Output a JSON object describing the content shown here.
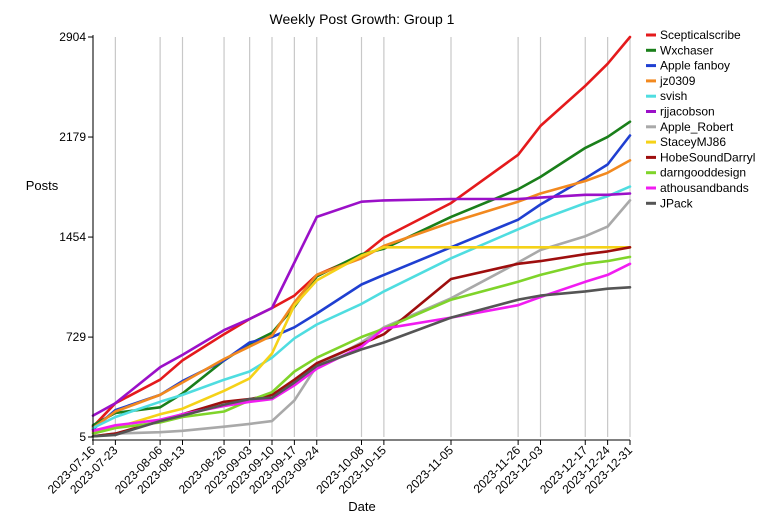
{
  "chart_data": {
    "type": "line",
    "title": "Weekly Post Growth: Group 1",
    "xlabel": "Date",
    "ylabel": "Posts",
    "grid": "vertical",
    "legend_placement": "right",
    "y_ticks": [
      5,
      729,
      1454,
      2179,
      2904
    ],
    "ylim": [
      5,
      2904
    ],
    "x": [
      "2023-07-16",
      "2023-07-23",
      "2023-08-06",
      "2023-08-13",
      "2023-08-26",
      "2023-09-03",
      "2023-09-10",
      "2023-09-17",
      "2023-09-24",
      "2023-10-08",
      "2023-10-15",
      "2023-11-05",
      "2023-11-26",
      "2023-12-03",
      "2023-12-17",
      "2023-12-24",
      "2023-12-31"
    ],
    "series": [
      {
        "name": "Scepticalscribe",
        "color": "#e41a1c",
        "values": [
          80,
          250,
          420,
          560,
          750,
          860,
          940,
          1030,
          1180,
          1320,
          1450,
          1700,
          2050,
          2260,
          2550,
          2710,
          2904
        ]
      },
      {
        "name": "Wxchaser",
        "color": "#1a7f1a",
        "values": [
          90,
          180,
          220,
          320,
          560,
          680,
          760,
          950,
          1170,
          1330,
          1370,
          1600,
          1800,
          1890,
          2100,
          2180,
          2290
        ]
      },
      {
        "name": "Apple fanboy",
        "color": "#1f3fd1",
        "values": [
          60,
          200,
          310,
          410,
          560,
          690,
          730,
          800,
          900,
          1110,
          1180,
          1380,
          1580,
          1690,
          1880,
          1980,
          2190
        ]
      },
      {
        "name": "jz0309",
        "color": "#f2891f",
        "values": [
          70,
          190,
          310,
          400,
          570,
          660,
          740,
          980,
          1180,
          1300,
          1390,
          1560,
          1710,
          1770,
          1860,
          1920,
          2010
        ]
      },
      {
        "name": "svish",
        "color": "#4fdde0",
        "values": [
          70,
          150,
          260,
          310,
          420,
          480,
          580,
          720,
          820,
          970,
          1060,
          1300,
          1510,
          1580,
          1700,
          1750,
          1820
        ]
      },
      {
        "name": "rjjacobson",
        "color": "#9b10c8",
        "values": [
          160,
          250,
          510,
          600,
          780,
          860,
          940,
          1270,
          1600,
          1710,
          1720,
          1730,
          1730,
          1740,
          1760,
          1760,
          1770
        ]
      },
      {
        "name": "Apple_Robert",
        "color": "#a9a9a9",
        "values": [
          10,
          30,
          40,
          50,
          80,
          100,
          120,
          270,
          520,
          690,
          800,
          1010,
          1270,
          1360,
          1460,
          1530,
          1720
        ]
      },
      {
        "name": "StaceyMJ86",
        "color": "#f5d218",
        "values": [
          40,
          70,
          170,
          210,
          340,
          430,
          610,
          960,
          1140,
          1320,
          1380,
          1380,
          1380,
          1380,
          1380,
          1380,
          1380
        ]
      },
      {
        "name": "HobeSoundDarryl",
        "color": "#9e0e0e",
        "values": [
          10,
          30,
          120,
          170,
          260,
          280,
          310,
          420,
          540,
          680,
          750,
          1150,
          1260,
          1280,
          1330,
          1350,
          1380
        ]
      },
      {
        "name": "darngooddesign",
        "color": "#7fd42a",
        "values": [
          30,
          70,
          110,
          150,
          190,
          270,
          330,
          480,
          580,
          730,
          790,
          1000,
          1130,
          1180,
          1260,
          1280,
          1310
        ]
      },
      {
        "name": "athousandbands",
        "color": "#f11cf1",
        "values": [
          50,
          90,
          130,
          170,
          230,
          260,
          280,
          380,
          500,
          660,
          790,
          870,
          960,
          1020,
          1130,
          1180,
          1260
        ]
      },
      {
        "name": "JPack",
        "color": "#555555",
        "values": [
          10,
          20,
          120,
          160,
          240,
          280,
          290,
          400,
          520,
          640,
          690,
          870,
          1000,
          1030,
          1060,
          1080,
          1090
        ]
      }
    ]
  }
}
